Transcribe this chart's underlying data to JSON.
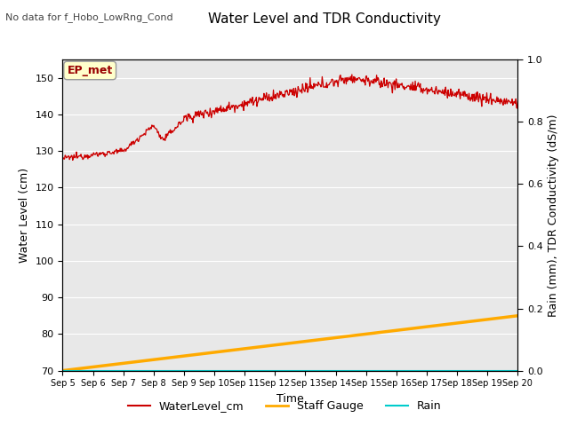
{
  "title": "Water Level and TDR Conductivity",
  "subtitle": "No data for f_Hobo_LowRng_Cond",
  "xlabel": "Time",
  "ylabel_left": "Water Level (cm)",
  "ylabel_right": "Rain (mm), TDR Conductivity (dS/m)",
  "ylim_left": [
    70,
    155
  ],
  "ylim_right": [
    0.0,
    1.0
  ],
  "yticks_left": [
    70,
    80,
    90,
    100,
    110,
    120,
    130,
    140,
    150
  ],
  "yticks_right": [
    0.0,
    0.2,
    0.4,
    0.6,
    0.8,
    1.0
  ],
  "x_tick_labels": [
    "Sep 5",
    "Sep 6",
    "Sep 7",
    "Sep 8",
    "Sep 9",
    "Sep 10",
    "Sep 11",
    "Sep 12",
    "Sep 13",
    "Sep 14",
    "Sep 15",
    "Sep 16",
    "Sep 17",
    "Sep 18",
    "Sep 19",
    "Sep 20"
  ],
  "annotation_box": "EP_met",
  "water_level_color": "#cc0000",
  "staff_gauge_color": "#ffaa00",
  "rain_color": "#00cccc",
  "background_color": "#e8e8e8",
  "grid_color": "#ffffff",
  "legend_entries": [
    "WaterLevel_cm",
    "Staff Gauge",
    "Rain"
  ],
  "ep_met_text_color": "#990000",
  "ep_met_bg_color": "#ffffcc"
}
